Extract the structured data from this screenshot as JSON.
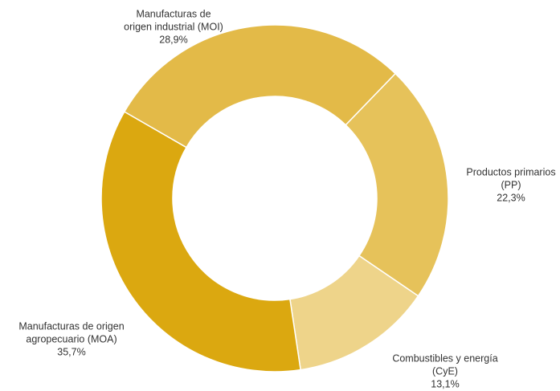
{
  "chart_data": {
    "type": "donut",
    "categories": [
      [
        "Productos primarios",
        "(PP)"
      ],
      [
        "Combustibles y energía",
        "(CyE)"
      ],
      [
        "Manufacturas de origen",
        "agropecuario (MOA)"
      ],
      [
        "Manufacturas de",
        "origen industrial (MOI)"
      ]
    ],
    "values": [
      22.3,
      13.1,
      35.7,
      28.9
    ],
    "value_labels": [
      "22,3%",
      "13,1%",
      "35,7%",
      "28,9%"
    ],
    "colors": [
      "#e6c25a",
      "#eed48a",
      "#dba810",
      "#e3ba48"
    ]
  }
}
